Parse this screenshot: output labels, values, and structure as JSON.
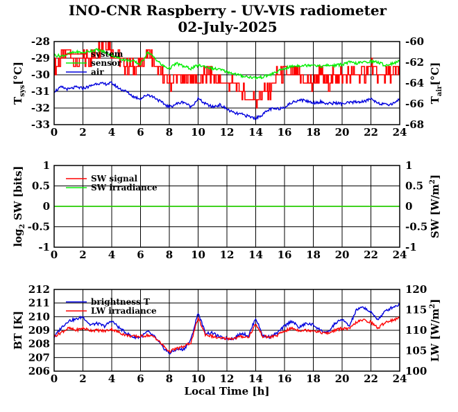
{
  "title": "INO-CNR Raspberry - UV-VIS radiometer",
  "date": "02-July-2025",
  "colors": {
    "red": "#ff0000",
    "green": "#00ee00",
    "blue": "#0000dd"
  },
  "chart_data": [
    {
      "type": "line",
      "x_ticks": [
        "0",
        "2",
        "4",
        "6",
        "8",
        "10",
        "12",
        "14",
        "16",
        "18",
        "20",
        "22",
        "24"
      ],
      "xlim": [
        0,
        24
      ],
      "y_left": {
        "label_main": "T",
        "label_sub": "sys",
        "label_unit": "[°C]",
        "ylim": [
          -33,
          -28
        ],
        "ticks": [
          "-33",
          "-32",
          "-31",
          "-30",
          "-29",
          "-28"
        ]
      },
      "y_right": {
        "label_main": "T",
        "label_sub": "air",
        "label_unit": "[°C]",
        "ylim": [
          -68,
          -60
        ],
        "ticks": [
          "-68",
          "-66",
          "-64",
          "-62",
          "-60"
        ]
      },
      "grid": true,
      "legend": {
        "placement": "top-left"
      },
      "series": [
        {
          "name": "system",
          "axis": "left",
          "color": "red",
          "style": "step",
          "x": [
            0,
            0.5,
            1,
            1.5,
            2,
            2.5,
            3,
            3.5,
            4,
            4.5,
            5,
            5.5,
            6,
            6.5,
            7,
            7.5,
            8,
            8.5,
            9,
            9.5,
            10,
            10.5,
            11,
            11.5,
            12,
            12.5,
            13,
            13.5,
            14,
            14.5,
            15,
            15.5,
            16,
            16.5,
            17,
            17.5,
            18,
            18.5,
            19,
            19.5,
            20,
            20.5,
            21,
            21.5,
            22,
            22.5,
            23,
            23.5,
            24
          ],
          "y": [
            -29.5,
            -29,
            -28.5,
            -29.5,
            -29,
            -29,
            -28.5,
            -28,
            -28.5,
            -29,
            -29.5,
            -29.5,
            -29.5,
            -28.5,
            -29.5,
            -30,
            -30.5,
            -30,
            -30.5,
            -30,
            -30.5,
            -30,
            -30,
            -30.5,
            -30.5,
            -30.5,
            -31,
            -31.5,
            -31.5,
            -31,
            -31,
            -30,
            -30,
            -30,
            -30,
            -30.5,
            -30.5,
            -30,
            -30.5,
            -30,
            -30,
            -30,
            -30,
            -30,
            -29.5,
            -30,
            -30,
            -30,
            -29.5
          ]
        },
        {
          "name": "sensor",
          "axis": "right",
          "color": "green",
          "style": "line",
          "x": [
            0,
            0.5,
            1,
            1.5,
            2,
            2.5,
            3,
            3.5,
            4,
            4.5,
            5,
            5.5,
            6,
            6.5,
            7,
            7.5,
            8,
            8.5,
            9,
            9.5,
            10,
            10.5,
            11,
            11.5,
            12,
            12.5,
            13,
            13.5,
            14,
            14.5,
            15,
            15.5,
            16,
            16.5,
            17,
            17.5,
            18,
            18.5,
            19,
            19.5,
            20,
            20.5,
            21,
            21.5,
            22,
            22.5,
            23,
            23.5,
            24
          ],
          "y": [
            -61.3,
            -61.4,
            -61.2,
            -61.0,
            -61.1,
            -60.9,
            -60.8,
            -61.0,
            -61.3,
            -61.6,
            -61.8,
            -61.9,
            -62.2,
            -61.0,
            -61.6,
            -62.3,
            -62.6,
            -62.1,
            -62.4,
            -62.6,
            -62.3,
            -62.4,
            -62.6,
            -62.7,
            -62.9,
            -63.1,
            -63.3,
            -63.4,
            -63.5,
            -63.4,
            -63.2,
            -62.9,
            -62.6,
            -62.4,
            -62.3,
            -62.3,
            -62.2,
            -62.4,
            -62.3,
            -62.3,
            -62.2,
            -62.0,
            -62.1,
            -62.0,
            -61.9,
            -62.0,
            -62.3,
            -62.1,
            -61.9
          ]
        },
        {
          "name": "air",
          "axis": "right",
          "color": "blue",
          "style": "line",
          "x": [
            0,
            0.5,
            1,
            1.5,
            2,
            2.5,
            3,
            3.5,
            4,
            4.5,
            5,
            5.5,
            6,
            6.5,
            7,
            7.5,
            8,
            8.5,
            9,
            9.5,
            10,
            10.5,
            11,
            11.5,
            12,
            12.5,
            13,
            13.5,
            14,
            14.5,
            15,
            15.5,
            16,
            16.5,
            17,
            17.5,
            18,
            18.5,
            19,
            19.5,
            20,
            20.5,
            21,
            21.5,
            22,
            22.5,
            23,
            23.5,
            24
          ],
          "y": [
            -64.8,
            -64.4,
            -64.6,
            -64.4,
            -64.5,
            -64.3,
            -64.0,
            -64.1,
            -64.0,
            -64.5,
            -64.8,
            -65.3,
            -65.5,
            -65.1,
            -65.4,
            -65.9,
            -66.3,
            -66.0,
            -65.8,
            -66.3,
            -65.5,
            -66.0,
            -66.3,
            -66.1,
            -66.5,
            -66.9,
            -67.0,
            -67.2,
            -67.4,
            -67.0,
            -66.5,
            -66.5,
            -66.3,
            -65.9,
            -65.6,
            -65.7,
            -65.9,
            -65.8,
            -66.0,
            -65.9,
            -66.0,
            -65.9,
            -65.8,
            -65.8,
            -65.5,
            -65.9,
            -66.1,
            -66.0,
            -65.5
          ]
        }
      ]
    },
    {
      "type": "line",
      "x_ticks": [
        "0",
        "2",
        "4",
        "6",
        "8",
        "10",
        "12",
        "14",
        "16",
        "18",
        "20",
        "22",
        "24"
      ],
      "xlim": [
        0,
        24
      ],
      "y_left": {
        "label_main": "log",
        "label_sub": "2",
        "label_unit": " SW [bits]",
        "ylim": [
          -1,
          1
        ],
        "ticks": [
          "-1",
          "-0.5",
          "0",
          "0.5",
          "1"
        ]
      },
      "y_right": {
        "label_main": "SW [W/m",
        "label_sup": "2",
        "label_unit": "]",
        "ylim": [
          -1,
          1
        ],
        "ticks": [
          "-1",
          "-0.5",
          "0",
          "0.5",
          "1"
        ]
      },
      "grid": true,
      "legend": {
        "placement": "top-left"
      },
      "series": [
        {
          "name": "SW signal",
          "axis": "left",
          "color": "red",
          "style": "line",
          "x": [
            0,
            24
          ],
          "y": [
            0,
            0
          ]
        },
        {
          "name": "SW irradiance",
          "axis": "right",
          "color": "green",
          "style": "line",
          "x": [
            0,
            24
          ],
          "y": [
            0,
            0
          ]
        }
      ]
    },
    {
      "type": "line",
      "x_ticks": [
        "0",
        "2",
        "4",
        "6",
        "8",
        "10",
        "12",
        "14",
        "16",
        "18",
        "20",
        "22",
        "24"
      ],
      "xlim": [
        0,
        24
      ],
      "xlabel": "Local Time [h]",
      "y_left": {
        "label_main": "BT [K]",
        "ylim": [
          206,
          212
        ],
        "ticks": [
          "206",
          "207",
          "208",
          "209",
          "210",
          "211",
          "212"
        ]
      },
      "y_right": {
        "label_main": "LW [W/m",
        "label_sup": "2",
        "label_unit": "]",
        "ylim": [
          100,
          120
        ],
        "ticks": [
          "100",
          "105",
          "110",
          "115",
          "120"
        ]
      },
      "grid": true,
      "legend": {
        "placement": "top-left"
      },
      "series": [
        {
          "name": "brightness T",
          "axis": "left",
          "color": "blue",
          "style": "line",
          "x": [
            0,
            0.5,
            1,
            1.5,
            2,
            2.5,
            3,
            3.5,
            4,
            4.5,
            5,
            5.5,
            6,
            6.5,
            7,
            7.5,
            8,
            8.5,
            9,
            9.5,
            10,
            10.5,
            11,
            11.5,
            12,
            12.5,
            13,
            13.5,
            14,
            14.5,
            15,
            15.5,
            16,
            16.5,
            17,
            17.5,
            18,
            18.5,
            19,
            19.5,
            20,
            20.5,
            21,
            21.5,
            22,
            22.5,
            23,
            23.5,
            24
          ],
          "y": [
            208.5,
            209.2,
            209.7,
            209.8,
            210.0,
            209.4,
            209.5,
            209.3,
            209.7,
            209.2,
            208.8,
            208.5,
            208.5,
            208.9,
            208.5,
            207.8,
            207.3,
            207.6,
            207.6,
            208.3,
            210.3,
            208.8,
            208.8,
            208.5,
            208.4,
            208.4,
            208.8,
            208.6,
            209.9,
            208.6,
            208.5,
            208.8,
            209.3,
            209.7,
            209.2,
            209.5,
            209.4,
            209.0,
            208.8,
            209.5,
            209.8,
            209.3,
            210.5,
            210.7,
            210.3,
            209.8,
            210.4,
            210.7,
            210.9
          ]
        },
        {
          "name": "LW irradiance",
          "axis": "right",
          "color": "red",
          "style": "line",
          "x": [
            0,
            0.5,
            1,
            1.5,
            2,
            2.5,
            3,
            3.5,
            4,
            4.5,
            5,
            5.5,
            6,
            6.5,
            7,
            7.5,
            8,
            8.5,
            9,
            9.5,
            10,
            10.5,
            11,
            11.5,
            12,
            12.5,
            13,
            13.5,
            14,
            14.5,
            15,
            15.5,
            16,
            16.5,
            17,
            17.5,
            18,
            18.5,
            19,
            19.5,
            20,
            20.5,
            21,
            21.5,
            22,
            22.5,
            23,
            23.5,
            24
          ],
          "y": [
            108.5,
            109.5,
            110.5,
            110.0,
            110.5,
            110.0,
            110.0,
            109.8,
            110.3,
            109.5,
            108.8,
            108.5,
            108.5,
            108.8,
            108.3,
            106.5,
            104.8,
            105.5,
            106.0,
            107.0,
            113.0,
            109.0,
            108.5,
            108.0,
            108.0,
            108.0,
            108.5,
            108.3,
            111.5,
            108.5,
            108.3,
            108.8,
            109.8,
            110.5,
            110.0,
            110.0,
            110.0,
            109.5,
            109.2,
            110.0,
            110.5,
            110.3,
            112.0,
            112.5,
            112.0,
            110.5,
            112.0,
            112.5,
            113.0
          ]
        }
      ]
    }
  ]
}
